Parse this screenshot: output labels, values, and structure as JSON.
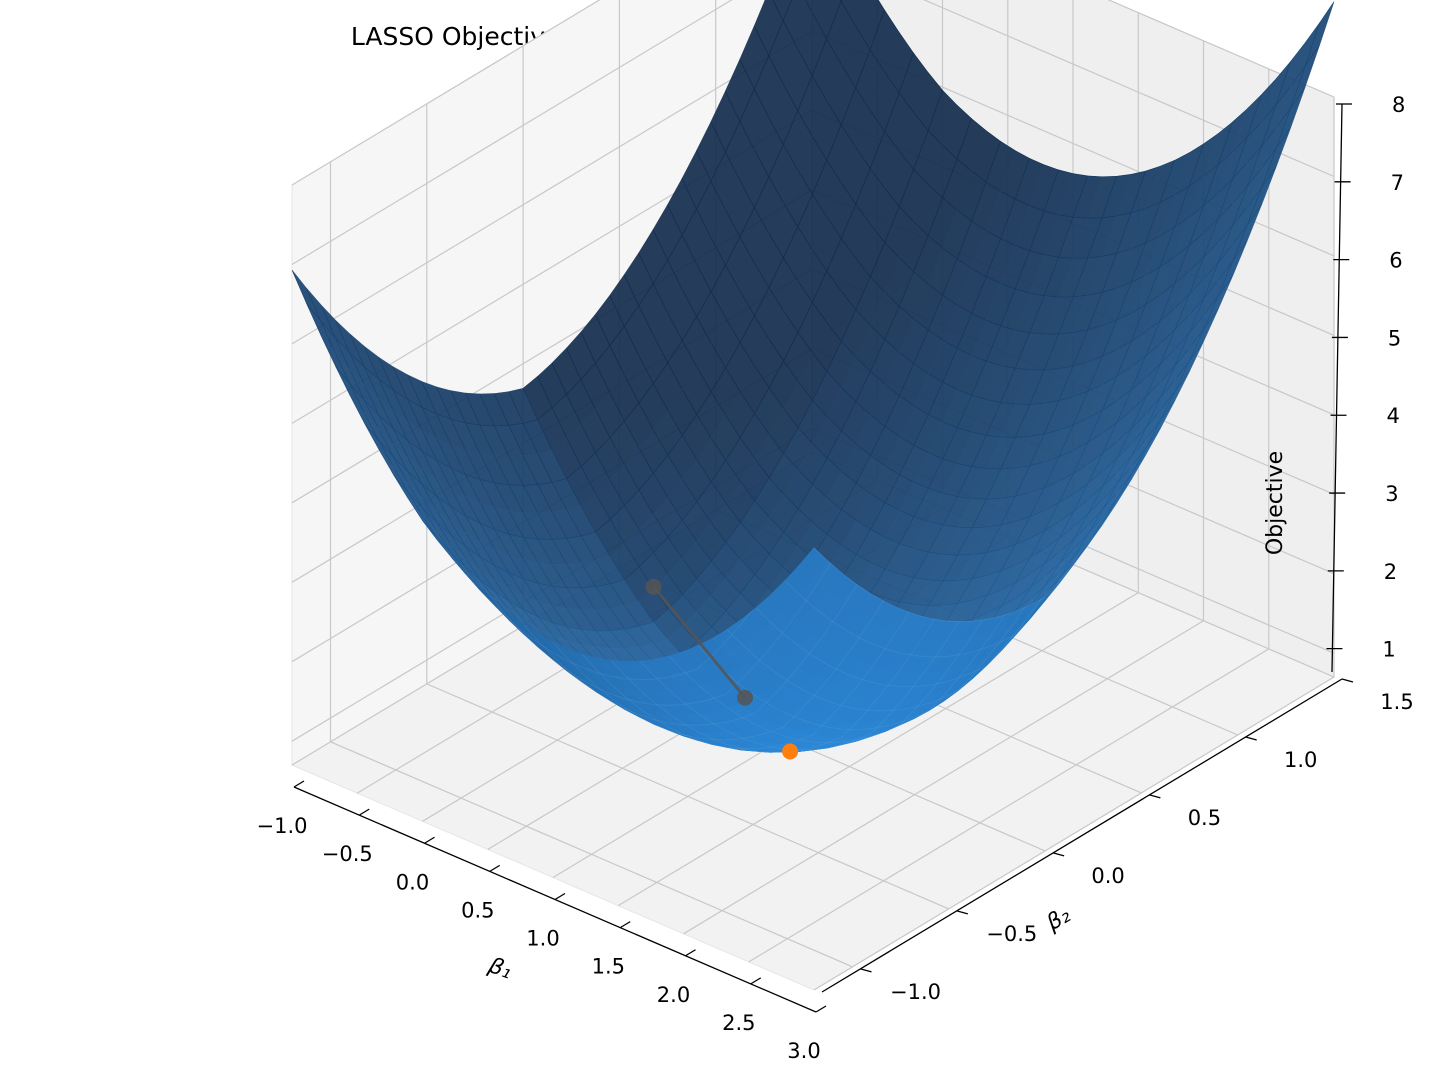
{
  "chart_data": {
    "type": "surface3d",
    "title": "LASSO Objective Surface + Subgradient Descent Path (3D)",
    "xlabel": "β₁",
    "ylabel": "β₂",
    "zlabel": "Objective",
    "xlim": [
      -1.0,
      3.0
    ],
    "ylim": [
      -1.2,
      1.5
    ],
    "zlim": [
      0.7,
      8.0
    ],
    "x_ticks": [
      "−1.0",
      "−0.5",
      "0.0",
      "0.5",
      "1.0",
      "1.5",
      "2.0",
      "2.5",
      "3.0"
    ],
    "y_ticks": [
      "−1.0",
      "−0.5",
      "0.0",
      "0.5",
      "1.0",
      "1.5"
    ],
    "z_ticks": [
      "1",
      "2",
      "3",
      "4",
      "5",
      "6",
      "7",
      "8"
    ],
    "grid": true,
    "surface": {
      "function": "objective(beta1, beta2)",
      "corner_values": [
        {
          "beta1": -1.0,
          "beta2": -1.2,
          "objective": 7.3
        },
        {
          "beta1": -1.0,
          "beta2": 1.5,
          "objective": 8.0
        },
        {
          "beta1": 3.0,
          "beta2": -1.2,
          "objective": 3.3
        },
        {
          "beta1": 3.0,
          "beta2": 1.5,
          "objective": 7.3
        }
      ],
      "minimum": {
        "beta1": 1.0,
        "beta2": 0.0,
        "objective": 0.85
      },
      "color": "#1f77b4"
    },
    "path": {
      "color": "#555555",
      "points": [
        {
          "beta1": 0.0,
          "beta2": 0.0,
          "objective": 1.9
        },
        {
          "beta1": 0.7,
          "beta2": 0.0,
          "objective": 1.0
        }
      ]
    },
    "final_point": {
      "beta1": 1.0,
      "beta2": 0.0,
      "objective": 0.85,
      "color": "#ff7f0e"
    }
  }
}
